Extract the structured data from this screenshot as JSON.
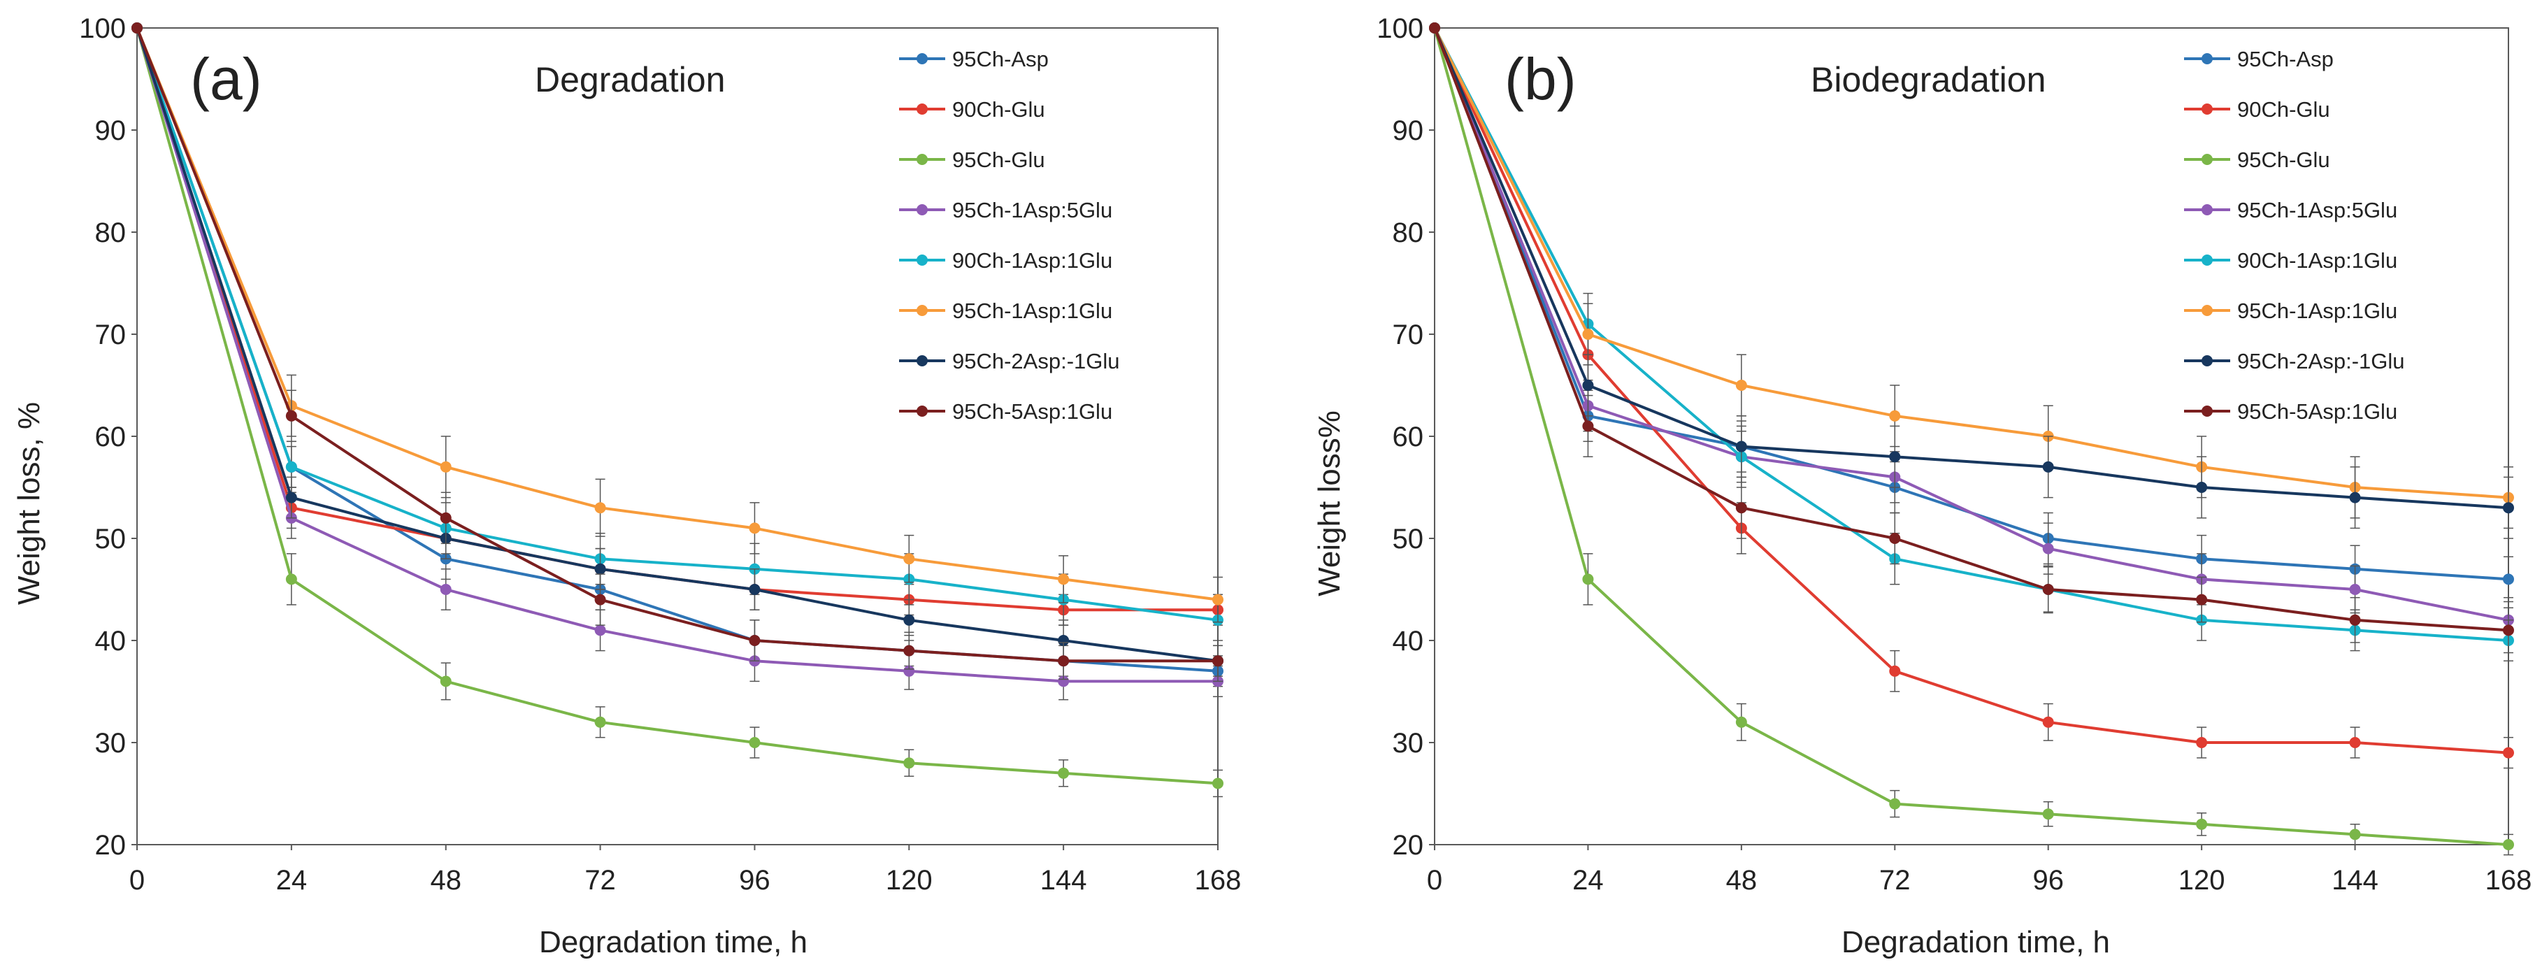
{
  "chart_data": [
    {
      "type": "line",
      "panel_label": "(a)",
      "title": "Degradation",
      "xlabel": "Degradation time, h",
      "ylabel": "Weight loss, %",
      "x": [
        0,
        24,
        48,
        72,
        96,
        120,
        144,
        168
      ],
      "x_ticks": [
        "0",
        "24",
        "48",
        "72",
        "96",
        "120",
        "144",
        "168"
      ],
      "ylim": [
        20,
        100
      ],
      "y_ticks": [
        "20",
        "30",
        "40",
        "50",
        "60",
        "70",
        "80",
        "90",
        "100"
      ],
      "grid": false,
      "legend_position": "top-right",
      "series": [
        {
          "name": "95Ch-Asp",
          "color": "#2e75b6",
          "values": [
            100,
            57,
            48,
            45,
            40,
            39,
            38,
            37
          ],
          "errors": [
            0,
            2,
            2,
            2,
            2,
            1.5,
            1.5,
            1.5
          ]
        },
        {
          "name": "90Ch-Glu",
          "color": "#e03c31",
          "values": [
            100,
            53,
            50,
            47,
            45,
            44,
            43,
            43
          ],
          "errors": [
            0,
            2,
            2,
            2,
            2,
            1.5,
            1.5,
            1.5
          ]
        },
        {
          "name": "95Ch-Glu",
          "color": "#7ab648",
          "values": [
            100,
            46,
            36,
            32,
            30,
            28,
            27,
            26
          ],
          "errors": [
            0,
            2.5,
            1.8,
            1.5,
            1.5,
            1.3,
            1.3,
            1.3
          ]
        },
        {
          "name": "95Ch-1Asp:5Glu",
          "color": "#8e5ab5",
          "values": [
            100,
            52,
            45,
            41,
            38,
            37,
            36,
            36
          ],
          "errors": [
            0,
            2,
            2,
            2,
            2,
            1.8,
            1.8,
            1.5
          ]
        },
        {
          "name": "90Ch-1Asp:1Glu",
          "color": "#17b2c9",
          "values": [
            100,
            57,
            51,
            48,
            47,
            46,
            44,
            42
          ],
          "errors": [
            0,
            2.5,
            2.5,
            2.5,
            2.5,
            2.5,
            2.5,
            2.5
          ]
        },
        {
          "name": "95Ch-1Asp:1Glu",
          "color": "#f79b3a",
          "values": [
            100,
            63,
            57,
            53,
            51,
            48,
            46,
            44
          ],
          "errors": [
            0,
            3,
            3,
            2.8,
            2.5,
            2.3,
            2.3,
            2.2
          ]
        },
        {
          "name": "95Ch-2Asp:-1Glu",
          "color": "#17375e",
          "values": [
            100,
            54,
            50,
            47,
            45,
            42,
            40,
            38
          ],
          "errors": [
            0,
            2,
            2,
            2,
            2,
            2,
            2,
            2
          ]
        },
        {
          "name": "95Ch-5Asp:1Glu",
          "color": "#7b1f1f",
          "values": [
            100,
            62,
            52,
            44,
            40,
            39,
            38,
            38
          ],
          "errors": [
            0,
            2.5,
            2.5,
            2.5,
            2,
            1.8,
            1.8,
            1.5
          ]
        }
      ]
    },
    {
      "type": "line",
      "panel_label": "(b)",
      "title": "Biodegradation",
      "xlabel": "Degradation time, h",
      "ylabel": "Weight loss%",
      "x": [
        0,
        24,
        48,
        72,
        96,
        120,
        144,
        168
      ],
      "x_ticks": [
        "0",
        "24",
        "48",
        "72",
        "96",
        "120",
        "144",
        "168"
      ],
      "ylim": [
        20,
        100
      ],
      "y_ticks": [
        "20",
        "30",
        "40",
        "50",
        "60",
        "70",
        "80",
        "90",
        "100"
      ],
      "grid": false,
      "legend_position": "top-right",
      "series": [
        {
          "name": "95Ch-Asp",
          "color": "#2e75b6",
          "values": [
            100,
            62,
            59,
            55,
            50,
            48,
            47,
            46
          ],
          "errors": [
            0,
            2.5,
            2.5,
            2.5,
            2.5,
            2.3,
            2.3,
            2.2
          ]
        },
        {
          "name": "90Ch-Glu",
          "color": "#e03c31",
          "values": [
            100,
            68,
            51,
            37,
            32,
            30,
            30,
            29
          ],
          "errors": [
            0,
            3,
            2.5,
            2,
            1.8,
            1.5,
            1.5,
            1.5
          ]
        },
        {
          "name": "95Ch-Glu",
          "color": "#7ab648",
          "values": [
            100,
            46,
            32,
            24,
            23,
            22,
            21,
            20
          ],
          "errors": [
            0,
            2.5,
            1.8,
            1.3,
            1.2,
            1.1,
            1,
            1
          ]
        },
        {
          "name": "95Ch-1Asp:5Glu",
          "color": "#8e5ab5",
          "values": [
            100,
            63,
            58,
            56,
            49,
            46,
            45,
            42
          ],
          "errors": [
            0,
            2.5,
            2.5,
            2.5,
            2.5,
            2.5,
            2.3,
            2.2
          ]
        },
        {
          "name": "90Ch-1Asp:1Glu",
          "color": "#17b2c9",
          "values": [
            100,
            71,
            58,
            48,
            45,
            42,
            41,
            40
          ],
          "errors": [
            0,
            3,
            3,
            2.5,
            2.2,
            2,
            2,
            2
          ]
        },
        {
          "name": "95Ch-1Asp:1Glu",
          "color": "#f79b3a",
          "values": [
            100,
            70,
            65,
            62,
            60,
            57,
            55,
            54
          ],
          "errors": [
            0,
            3,
            3,
            3,
            3,
            3,
            3,
            3
          ]
        },
        {
          "name": "95Ch-2Asp:-1Glu",
          "color": "#17375e",
          "values": [
            100,
            65,
            59,
            58,
            57,
            55,
            54,
            53
          ],
          "errors": [
            0,
            3,
            3,
            3,
            3,
            3,
            3,
            3
          ]
        },
        {
          "name": "95Ch-5Asp:1Glu",
          "color": "#7b1f1f",
          "values": [
            100,
            61,
            53,
            50,
            45,
            44,
            42,
            41
          ],
          "errors": [
            0,
            3,
            3,
            2.5,
            2.3,
            2.2,
            2.2,
            2.2
          ]
        }
      ]
    }
  ]
}
